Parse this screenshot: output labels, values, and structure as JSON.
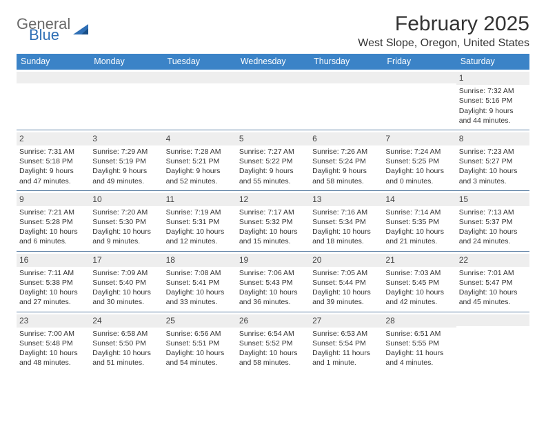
{
  "brand": {
    "general": "General",
    "blue": "Blue"
  },
  "header": {
    "month_title": "February 2025",
    "location": "West Slope, Oregon, United States"
  },
  "colors": {
    "header_bar": "#3b83c7",
    "day_band": "#eeeeee",
    "rule": "#5a7ea3",
    "text": "#333333",
    "logo_gray": "#6a6a6a",
    "logo_blue": "#2f6fb5"
  },
  "dow": [
    "Sunday",
    "Monday",
    "Tuesday",
    "Wednesday",
    "Thursday",
    "Friday",
    "Saturday"
  ],
  "weeks": [
    [
      null,
      null,
      null,
      null,
      null,
      null,
      {
        "n": "1",
        "sr": "7:32 AM",
        "ss": "5:16 PM",
        "dl": "9 hours and 44 minutes."
      }
    ],
    [
      {
        "n": "2",
        "sr": "7:31 AM",
        "ss": "5:18 PM",
        "dl": "9 hours and 47 minutes."
      },
      {
        "n": "3",
        "sr": "7:29 AM",
        "ss": "5:19 PM",
        "dl": "9 hours and 49 minutes."
      },
      {
        "n": "4",
        "sr": "7:28 AM",
        "ss": "5:21 PM",
        "dl": "9 hours and 52 minutes."
      },
      {
        "n": "5",
        "sr": "7:27 AM",
        "ss": "5:22 PM",
        "dl": "9 hours and 55 minutes."
      },
      {
        "n": "6",
        "sr": "7:26 AM",
        "ss": "5:24 PM",
        "dl": "9 hours and 58 minutes."
      },
      {
        "n": "7",
        "sr": "7:24 AM",
        "ss": "5:25 PM",
        "dl": "10 hours and 0 minutes."
      },
      {
        "n": "8",
        "sr": "7:23 AM",
        "ss": "5:27 PM",
        "dl": "10 hours and 3 minutes."
      }
    ],
    [
      {
        "n": "9",
        "sr": "7:21 AM",
        "ss": "5:28 PM",
        "dl": "10 hours and 6 minutes."
      },
      {
        "n": "10",
        "sr": "7:20 AM",
        "ss": "5:30 PM",
        "dl": "10 hours and 9 minutes."
      },
      {
        "n": "11",
        "sr": "7:19 AM",
        "ss": "5:31 PM",
        "dl": "10 hours and 12 minutes."
      },
      {
        "n": "12",
        "sr": "7:17 AM",
        "ss": "5:32 PM",
        "dl": "10 hours and 15 minutes."
      },
      {
        "n": "13",
        "sr": "7:16 AM",
        "ss": "5:34 PM",
        "dl": "10 hours and 18 minutes."
      },
      {
        "n": "14",
        "sr": "7:14 AM",
        "ss": "5:35 PM",
        "dl": "10 hours and 21 minutes."
      },
      {
        "n": "15",
        "sr": "7:13 AM",
        "ss": "5:37 PM",
        "dl": "10 hours and 24 minutes."
      }
    ],
    [
      {
        "n": "16",
        "sr": "7:11 AM",
        "ss": "5:38 PM",
        "dl": "10 hours and 27 minutes."
      },
      {
        "n": "17",
        "sr": "7:09 AM",
        "ss": "5:40 PM",
        "dl": "10 hours and 30 minutes."
      },
      {
        "n": "18",
        "sr": "7:08 AM",
        "ss": "5:41 PM",
        "dl": "10 hours and 33 minutes."
      },
      {
        "n": "19",
        "sr": "7:06 AM",
        "ss": "5:43 PM",
        "dl": "10 hours and 36 minutes."
      },
      {
        "n": "20",
        "sr": "7:05 AM",
        "ss": "5:44 PM",
        "dl": "10 hours and 39 minutes."
      },
      {
        "n": "21",
        "sr": "7:03 AM",
        "ss": "5:45 PM",
        "dl": "10 hours and 42 minutes."
      },
      {
        "n": "22",
        "sr": "7:01 AM",
        "ss": "5:47 PM",
        "dl": "10 hours and 45 minutes."
      }
    ],
    [
      {
        "n": "23",
        "sr": "7:00 AM",
        "ss": "5:48 PM",
        "dl": "10 hours and 48 minutes."
      },
      {
        "n": "24",
        "sr": "6:58 AM",
        "ss": "5:50 PM",
        "dl": "10 hours and 51 minutes."
      },
      {
        "n": "25",
        "sr": "6:56 AM",
        "ss": "5:51 PM",
        "dl": "10 hours and 54 minutes."
      },
      {
        "n": "26",
        "sr": "6:54 AM",
        "ss": "5:52 PM",
        "dl": "10 hours and 58 minutes."
      },
      {
        "n": "27",
        "sr": "6:53 AM",
        "ss": "5:54 PM",
        "dl": "11 hours and 1 minute."
      },
      {
        "n": "28",
        "sr": "6:51 AM",
        "ss": "5:55 PM",
        "dl": "11 hours and 4 minutes."
      },
      null
    ]
  ],
  "labels": {
    "sunrise": "Sunrise: ",
    "sunset": "Sunset: ",
    "daylight": "Daylight: "
  }
}
